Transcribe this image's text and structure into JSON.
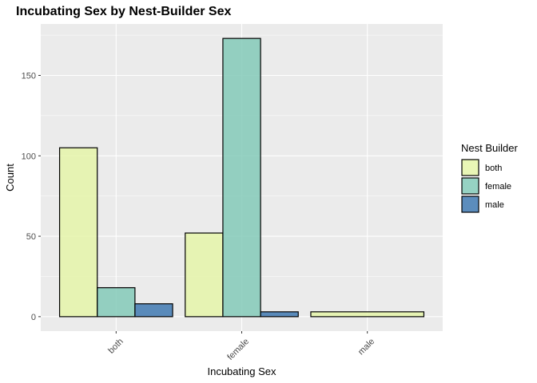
{
  "chart_data": {
    "type": "bar",
    "title": "Incubating Sex by Nest-Builder Sex",
    "xlabel": "Incubating Sex",
    "ylabel": "Count",
    "categories": [
      "both",
      "female",
      "male"
    ],
    "yticks": [
      0,
      50,
      100,
      150
    ],
    "ylim": [
      -9,
      182
    ],
    "grid": true,
    "legend": {
      "title": "Nest Builder",
      "position": "right"
    },
    "series": [
      {
        "name": "both",
        "color": "#e5f5a9",
        "values": [
          105,
          52,
          3
        ]
      },
      {
        "name": "female",
        "color": "#84cab9",
        "values": [
          18,
          173,
          null
        ]
      },
      {
        "name": "male",
        "color": "#3f79b1",
        "values": [
          8,
          3,
          null
        ]
      }
    ]
  }
}
